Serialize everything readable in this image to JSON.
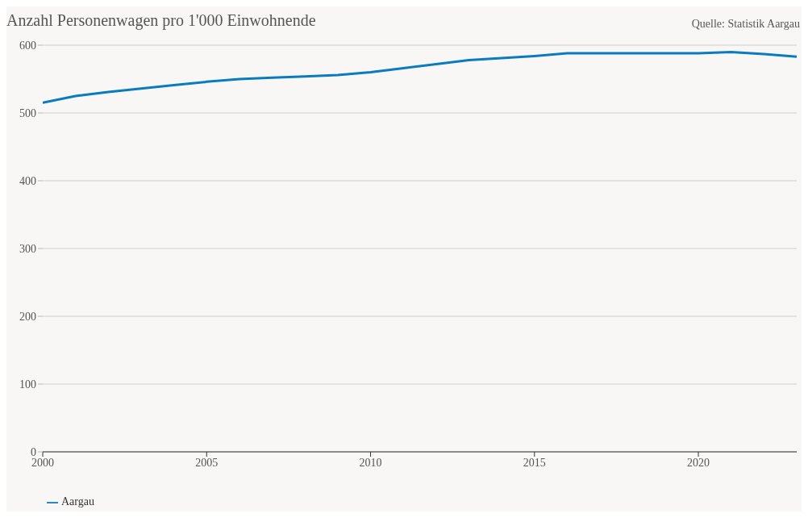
{
  "chart_data": {
    "type": "line",
    "title": "Anzahl Personenwagen pro 1'000 Einwohnende",
    "annotations": [
      "Quelle: Statistik Aargau"
    ],
    "x": [
      2000,
      2001,
      2002,
      2003,
      2004,
      2005,
      2006,
      2007,
      2008,
      2009,
      2010,
      2011,
      2012,
      2013,
      2014,
      2015,
      2016,
      2017,
      2018,
      2019,
      2020,
      2021,
      2022,
      2023
    ],
    "series": [
      {
        "name": "Aargau",
        "color": "#0a7bbf",
        "values": [
          515,
          525,
          531,
          536,
          541,
          546,
          550,
          552,
          554,
          556,
          560,
          566,
          572,
          578,
          581,
          584,
          588,
          588,
          588,
          588,
          588,
          590,
          587,
          583
        ]
      }
    ],
    "xlim": [
      2000,
      2023
    ],
    "xticks": [
      2000,
      2005,
      2010,
      2015,
      2020
    ],
    "ylim": [
      0,
      600
    ],
    "yticks": [
      0,
      100,
      200,
      300,
      400,
      500,
      600
    ],
    "grid": "y",
    "legend": "bottom left",
    "marker": "none",
    "line_style": "solid"
  }
}
